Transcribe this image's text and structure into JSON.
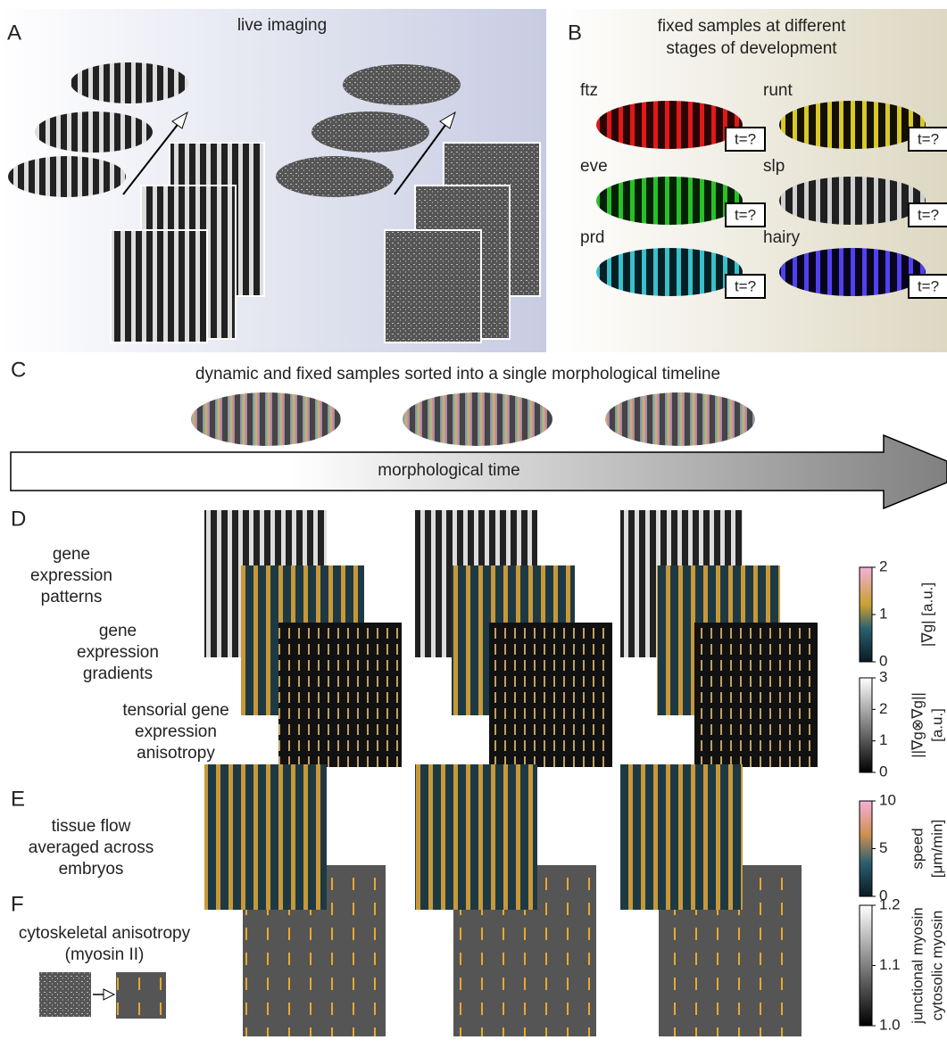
{
  "panels": {
    "A": {
      "label": "A",
      "title": "live imaging"
    },
    "B": {
      "label": "B",
      "title_lines": [
        "fixed samples at different",
        "stages of development"
      ],
      "genes": [
        {
          "name": "ftz",
          "stage": "t=?"
        },
        {
          "name": "runt",
          "stage": "t=?"
        },
        {
          "name": "eve",
          "stage": "t=?"
        },
        {
          "name": "slp",
          "stage": "t=?"
        },
        {
          "name": "prd",
          "stage": "t=?"
        },
        {
          "name": "hairy",
          "stage": "t=?"
        }
      ]
    },
    "C": {
      "label": "C",
      "title": "dynamic and fixed samples sorted into a single morphological timeline",
      "arrow_label": "morphological time"
    },
    "D": {
      "label": "D",
      "rows": [
        [
          "gene",
          "expression",
          "patterns"
        ],
        [
          "gene",
          "expression",
          "gradients"
        ],
        [
          "tensorial gene",
          "expression",
          "anisotropy"
        ]
      ]
    },
    "E": {
      "label": "E",
      "lines": [
        "tissue flow",
        "averaged across",
        "embryos"
      ]
    },
    "F": {
      "label": "F",
      "lines": [
        "cytoskeletal anisotropy",
        "(myosin II)"
      ]
    }
  },
  "colorbars": [
    {
      "label_lines": [
        "|∇g| [a.u.]"
      ],
      "ticks": [
        "2",
        "1",
        "0"
      ]
    },
    {
      "label_lines": [
        "||∇g⊗∇g||",
        "[a.u.]"
      ],
      "ticks": [
        "3",
        "2",
        "1",
        "0"
      ]
    },
    {
      "label_lines": [
        "speed",
        "[μm/min]"
      ],
      "ticks": [
        "10",
        "5",
        "0"
      ]
    },
    {
      "label_lines": [
        "junctional myosin",
        "cytosolic myosin"
      ],
      "ticks": [
        "1.2",
        "1.1",
        "1.0"
      ]
    }
  ]
}
